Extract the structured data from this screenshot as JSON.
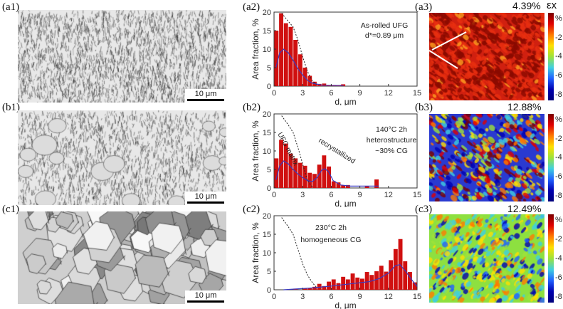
{
  "panels": {
    "a1": "(a1)",
    "a2": "(a2)",
    "a3": "(a3)",
    "b1": "(b1)",
    "b2": "(b2)",
    "b3": "(b3)",
    "c1": "(c1)",
    "c2": "(c2)",
    "c3": "(c3)"
  },
  "scale_bar": "10 μm",
  "strain_maps": {
    "symbol": "εx",
    "a3_value": "4.39%",
    "b3_value": "12.88%",
    "c3_value": "12.49%",
    "colorbar_labels": [
      "%",
      "-2",
      "-4",
      "-6",
      "-8"
    ],
    "colorbar_colors": [
      "#7a0000",
      "#e00000",
      "#ff7a00",
      "#ffe000",
      "#9de23a",
      "#3fd0e0",
      "#2060ff",
      "#0000b0"
    ]
  },
  "chart_data": [
    {
      "type": "bar",
      "id": "a2",
      "xlabel": "d, μm",
      "ylabel": "Area fraction, %",
      "xlim": [
        0,
        15
      ],
      "ylim": [
        0,
        20
      ],
      "xticks": [
        "0",
        "3",
        "6",
        "9",
        "12",
        "15"
      ],
      "yticks": [
        "0",
        "5",
        "10",
        "15",
        "20"
      ],
      "annotations": [
        "As-rolled UFG",
        "d*=0.89 μm"
      ],
      "bar_color": "#d01010",
      "x": [
        0.25,
        0.75,
        1.25,
        1.75,
        2.25,
        2.75,
        3.25,
        3.75,
        4.25,
        4.75,
        5.25,
        5.75,
        6.25,
        6.75,
        7.25
      ],
      "values": [
        15,
        19.7,
        17,
        16,
        12.5,
        8.6,
        5,
        2.8,
        1.2,
        0.6,
        0.7,
        0.3,
        0.3,
        0.1,
        0.5
      ],
      "fit_curve": [
        [
          0.2,
          5
        ],
        [
          0.6,
          9
        ],
        [
          1,
          10
        ],
        [
          1.5,
          9
        ],
        [
          2,
          7
        ],
        [
          2.5,
          4.8
        ],
        [
          3,
          3
        ],
        [
          3.5,
          1.6
        ],
        [
          4,
          0.8
        ],
        [
          5,
          0.3
        ],
        [
          6,
          0.2
        ],
        [
          7.3,
          0.2
        ]
      ],
      "dotted_curve": [
        [
          0.8,
          19.7
        ],
        [
          1.5,
          17.5
        ],
        [
          2,
          16
        ],
        [
          2.5,
          12.5
        ],
        [
          3,
          8
        ],
        [
          3.5,
          4
        ],
        [
          4,
          1.5
        ],
        [
          4.5,
          0.3
        ]
      ]
    },
    {
      "type": "bar",
      "id": "b2",
      "xlabel": "d, μm",
      "ylabel": "Area fraction, %",
      "xlim": [
        0,
        15
      ],
      "ylim": [
        0,
        20
      ],
      "xticks": [
        "0",
        "3",
        "6",
        "9",
        "12",
        "15"
      ],
      "yticks": [
        "0",
        "5",
        "10",
        "15",
        "20"
      ],
      "annotations": [
        "140°C 2h",
        "heterostructure",
        "~30% CG",
        "UFG matrix",
        "recrystallized"
      ],
      "bar_color": "#d01010",
      "x": [
        0.25,
        0.75,
        1.25,
        1.75,
        2.25,
        2.75,
        3.25,
        3.75,
        4.25,
        4.75,
        5.25,
        5.75,
        6.25,
        6.75,
        7.25,
        7.75,
        9.75,
        10.75
      ],
      "values": [
        8,
        13,
        12,
        9.3,
        8,
        6.8,
        6,
        4.1,
        3.8,
        6.3,
        8.8,
        5.8,
        1.8,
        1.5,
        0.7,
        0.8,
        0.5,
        2.3
      ],
      "fit_curve": [
        [
          0.2,
          2.2
        ],
        [
          0.6,
          6
        ],
        [
          1,
          7.3
        ],
        [
          1.5,
          6.5
        ],
        [
          2,
          5
        ],
        [
          2.5,
          3.8
        ],
        [
          3,
          2.8
        ],
        [
          3.5,
          2
        ],
        [
          4,
          1.7
        ],
        [
          4.5,
          2.8
        ],
        [
          5,
          4.8
        ],
        [
          5.3,
          5.2
        ],
        [
          5.7,
          4.5
        ],
        [
          6.2,
          2
        ],
        [
          7,
          0.8
        ],
        [
          8,
          0.5
        ],
        [
          11,
          0.5
        ]
      ],
      "dotted_curve": [
        [
          0.8,
          19.5
        ],
        [
          1.5,
          17
        ],
        [
          2,
          15
        ],
        [
          2.5,
          11
        ],
        [
          3,
          6.5
        ],
        [
          3.5,
          2
        ],
        [
          4,
          0.3
        ]
      ]
    },
    {
      "type": "bar",
      "id": "c2",
      "xlabel": "d, μm",
      "ylabel": "Area fraction, %",
      "xlim": [
        0,
        15
      ],
      "ylim": [
        0,
        20
      ],
      "xticks": [
        "0",
        "3",
        "6",
        "9",
        "12",
        "15"
      ],
      "yticks": [
        "0",
        "5",
        "10",
        "15",
        "20"
      ],
      "annotations": [
        "230°C 2h",
        "homogeneous CG"
      ],
      "bar_color": "#d01010",
      "x": [
        1.25,
        2.25,
        3.25,
        3.75,
        4.25,
        4.75,
        5.25,
        5.75,
        6.25,
        6.75,
        7.25,
        7.75,
        8.25,
        8.75,
        9.25,
        9.75,
        10.25,
        10.75,
        11.25,
        11.75,
        12.25,
        12.75,
        13.25,
        13.75,
        14.25,
        14.75
      ],
      "values": [
        0.1,
        0.3,
        0.3,
        0.4,
        0.8,
        1.6,
        1,
        2.2,
        2.8,
        1.8,
        3.5,
        2.8,
        4.4,
        3.3,
        3,
        4.8,
        4,
        5,
        6.5,
        4.9,
        8,
        11,
        13.7,
        7.7,
        4.8,
        2
      ],
      "fit_curve": [
        [
          1,
          0
        ],
        [
          4,
          0.5
        ],
        [
          6,
          1
        ],
        [
          8,
          1.6
        ],
        [
          10,
          2.2
        ],
        [
          11,
          3
        ],
        [
          12,
          4.5
        ],
        [
          12.7,
          6.5
        ],
        [
          13.2,
          6.8
        ],
        [
          13.8,
          5
        ],
        [
          14.5,
          2.5
        ],
        [
          15,
          0.9
        ]
      ],
      "dotted_curve": [
        [
          0.8,
          19.5
        ],
        [
          1.5,
          17
        ],
        [
          2,
          15
        ],
        [
          2.5,
          11
        ],
        [
          3,
          7
        ],
        [
          3.5,
          4
        ],
        [
          4,
          2
        ],
        [
          4.5,
          0.5
        ]
      ]
    }
  ]
}
